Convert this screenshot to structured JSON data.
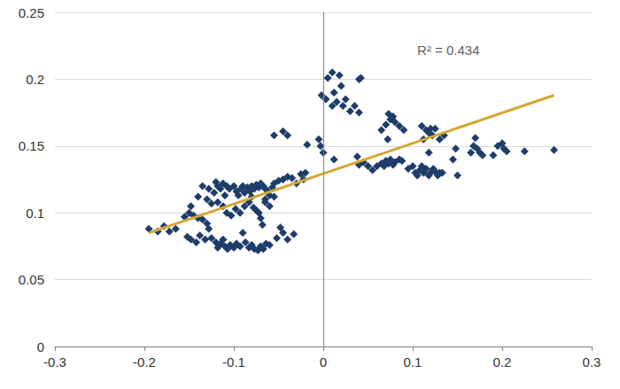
{
  "chart_data": {
    "type": "scatter",
    "xlim": [
      -0.3,
      0.3
    ],
    "xticks": [
      -0.3,
      -0.2,
      -0.1,
      0,
      0.1,
      0.2,
      0.3
    ],
    "ylim": [
      0,
      0.25
    ],
    "yticks": [
      0,
      0.05,
      0.1,
      0.15,
      0.2,
      0.25
    ],
    "grid": true,
    "annotations": [
      {
        "text": "R² = 0.434",
        "x": 0.105,
        "y": 0.222
      }
    ],
    "series": [
      {
        "type": "scatter",
        "color": "#1f3d6b",
        "marker": "diamond",
        "x": [
          -0.195,
          -0.185,
          -0.178,
          -0.172,
          -0.165,
          -0.155,
          -0.15,
          -0.148,
          -0.145,
          -0.14,
          -0.135,
          -0.13,
          -0.128,
          -0.152,
          -0.148,
          -0.142,
          -0.138,
          -0.132,
          -0.125,
          -0.122,
          -0.12,
          -0.118,
          -0.115,
          -0.112,
          -0.11,
          -0.108,
          -0.105,
          -0.1,
          -0.097,
          -0.095,
          -0.092,
          -0.09,
          -0.088,
          -0.085,
          -0.082,
          -0.08,
          -0.077,
          -0.075,
          -0.072,
          -0.07,
          -0.067,
          -0.065,
          -0.062,
          -0.06,
          -0.057,
          -0.055,
          -0.05,
          -0.045,
          -0.04,
          -0.035,
          -0.03,
          -0.025,
          -0.022,
          -0.02,
          -0.018,
          -0.118,
          -0.112,
          -0.108,
          -0.103,
          -0.098,
          -0.093,
          -0.088,
          -0.083,
          -0.08,
          -0.078,
          -0.075,
          -0.072,
          -0.07,
          -0.068,
          -0.065,
          -0.06,
          -0.055,
          -0.125,
          -0.12,
          -0.118,
          -0.115,
          -0.112,
          -0.11,
          -0.107,
          -0.104,
          -0.1,
          -0.097,
          -0.093,
          -0.09,
          -0.087,
          -0.083,
          -0.08,
          -0.077,
          -0.073,
          -0.07,
          -0.067,
          -0.064,
          -0.06,
          -0.052,
          -0.048,
          -0.045,
          -0.04,
          -0.033,
          -0.055,
          -0.045,
          -0.04,
          -0.065,
          -0.14,
          -0.135,
          -0.13,
          -0.128,
          -0.005,
          -0.003,
          0.0,
          -0.002,
          0.003,
          0.005,
          0.01,
          0.012,
          0.015,
          0.018,
          0.02,
          0.022,
          0.025,
          0.03,
          0.035,
          0.04,
          0.042,
          0.04,
          0.01,
          0.012,
          0.038,
          0.04,
          0.045,
          0.05,
          0.055,
          0.06,
          0.065,
          0.068,
          0.07,
          0.073,
          0.075,
          0.078,
          0.08,
          0.085,
          0.088,
          0.065,
          0.07,
          0.073,
          0.075,
          0.078,
          0.08,
          0.085,
          0.09,
          0.072,
          0.095,
          0.1,
          0.103,
          0.105,
          0.108,
          0.11,
          0.112,
          0.115,
          0.118,
          0.12,
          0.123,
          0.125,
          0.128,
          0.13,
          0.133,
          0.11,
          0.115,
          0.118,
          0.12,
          0.122,
          0.125,
          0.112,
          0.118,
          0.13,
          0.135,
          0.145,
          0.148,
          0.15,
          0.165,
          0.168,
          0.17,
          0.172,
          0.175,
          0.178,
          0.19,
          0.195,
          0.2,
          0.202,
          0.205,
          0.225,
          0.258
        ],
        "values": [
          0.088,
          0.086,
          0.09,
          0.086,
          0.088,
          0.097,
          0.1,
          0.105,
          0.098,
          0.096,
          0.095,
          0.092,
          0.088,
          0.082,
          0.08,
          0.078,
          0.083,
          0.08,
          0.107,
          0.115,
          0.123,
          0.12,
          0.118,
          0.122,
          0.113,
          0.12,
          0.118,
          0.12,
          0.116,
          0.113,
          0.118,
          0.12,
          0.115,
          0.119,
          0.116,
          0.12,
          0.118,
          0.121,
          0.119,
          0.122,
          0.12,
          0.118,
          0.116,
          0.113,
          0.119,
          0.122,
          0.124,
          0.125,
          0.127,
          0.126,
          0.122,
          0.129,
          0.125,
          0.13,
          0.151,
          0.108,
          0.105,
          0.1,
          0.098,
          0.103,
          0.1,
          0.105,
          0.108,
          0.112,
          0.104,
          0.102,
          0.1,
          0.096,
          0.091,
          0.108,
          0.105,
          0.112,
          0.081,
          0.078,
          0.074,
          0.077,
          0.08,
          0.075,
          0.073,
          0.076,
          0.074,
          0.077,
          0.075,
          0.085,
          0.078,
          0.074,
          0.076,
          0.073,
          0.072,
          0.075,
          0.073,
          0.077,
          0.076,
          0.081,
          0.089,
          0.085,
          0.08,
          0.084,
          0.158,
          0.161,
          0.158,
          0.11,
          0.112,
          0.12,
          0.11,
          0.118,
          0.155,
          0.15,
          0.145,
          0.188,
          0.185,
          0.201,
          0.205,
          0.19,
          0.183,
          0.203,
          0.195,
          0.18,
          0.185,
          0.176,
          0.18,
          0.2,
          0.201,
          0.175,
          0.18,
          0.14,
          0.142,
          0.136,
          0.138,
          0.135,
          0.132,
          0.135,
          0.137,
          0.135,
          0.139,
          0.137,
          0.14,
          0.136,
          0.138,
          0.14,
          0.139,
          0.162,
          0.166,
          0.174,
          0.17,
          0.172,
          0.168,
          0.165,
          0.162,
          0.155,
          0.133,
          0.135,
          0.13,
          0.128,
          0.132,
          0.135,
          0.13,
          0.133,
          0.128,
          0.13,
          0.133,
          0.131,
          0.128,
          0.13,
          0.13,
          0.165,
          0.162,
          0.16,
          0.163,
          0.158,
          0.163,
          0.155,
          0.145,
          0.155,
          0.158,
          0.14,
          0.148,
          0.128,
          0.145,
          0.15,
          0.156,
          0.148,
          0.145,
          0.143,
          0.143,
          0.15,
          0.152,
          0.148,
          0.146,
          0.146,
          0.147
        ]
      },
      {
        "type": "line",
        "color": "#d4a733",
        "x": [
          -0.195,
          0.258
        ],
        "values": [
          0.085,
          0.188
        ]
      }
    ]
  }
}
